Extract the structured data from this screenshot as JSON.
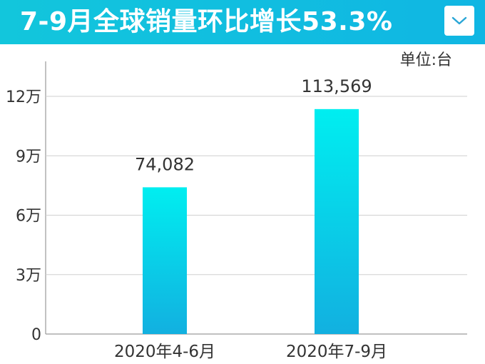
{
  "header": {
    "title": "7-9月全球销量环比增长53.3%",
    "dropdown_icon": "chevron-down-icon"
  },
  "colors": {
    "banner_start": "#12c6dc",
    "banner_end": "#10b6e3",
    "bar_top": "#00eef0",
    "bar_bottom": "#12b0e0"
  },
  "chart_data": {
    "type": "bar",
    "unit_label": "单位:台",
    "categories": [
      "2020年4-6月",
      "2020年7-9月"
    ],
    "values": [
      74082,
      113569
    ],
    "value_labels": [
      "74,082",
      "113,569"
    ],
    "y_ticks": [
      0,
      30000,
      60000,
      90000,
      120000
    ],
    "y_tick_labels": [
      "0",
      "3万",
      "6万",
      "9万",
      "12万"
    ],
    "ylim": [
      0,
      120000
    ],
    "grid": true
  }
}
